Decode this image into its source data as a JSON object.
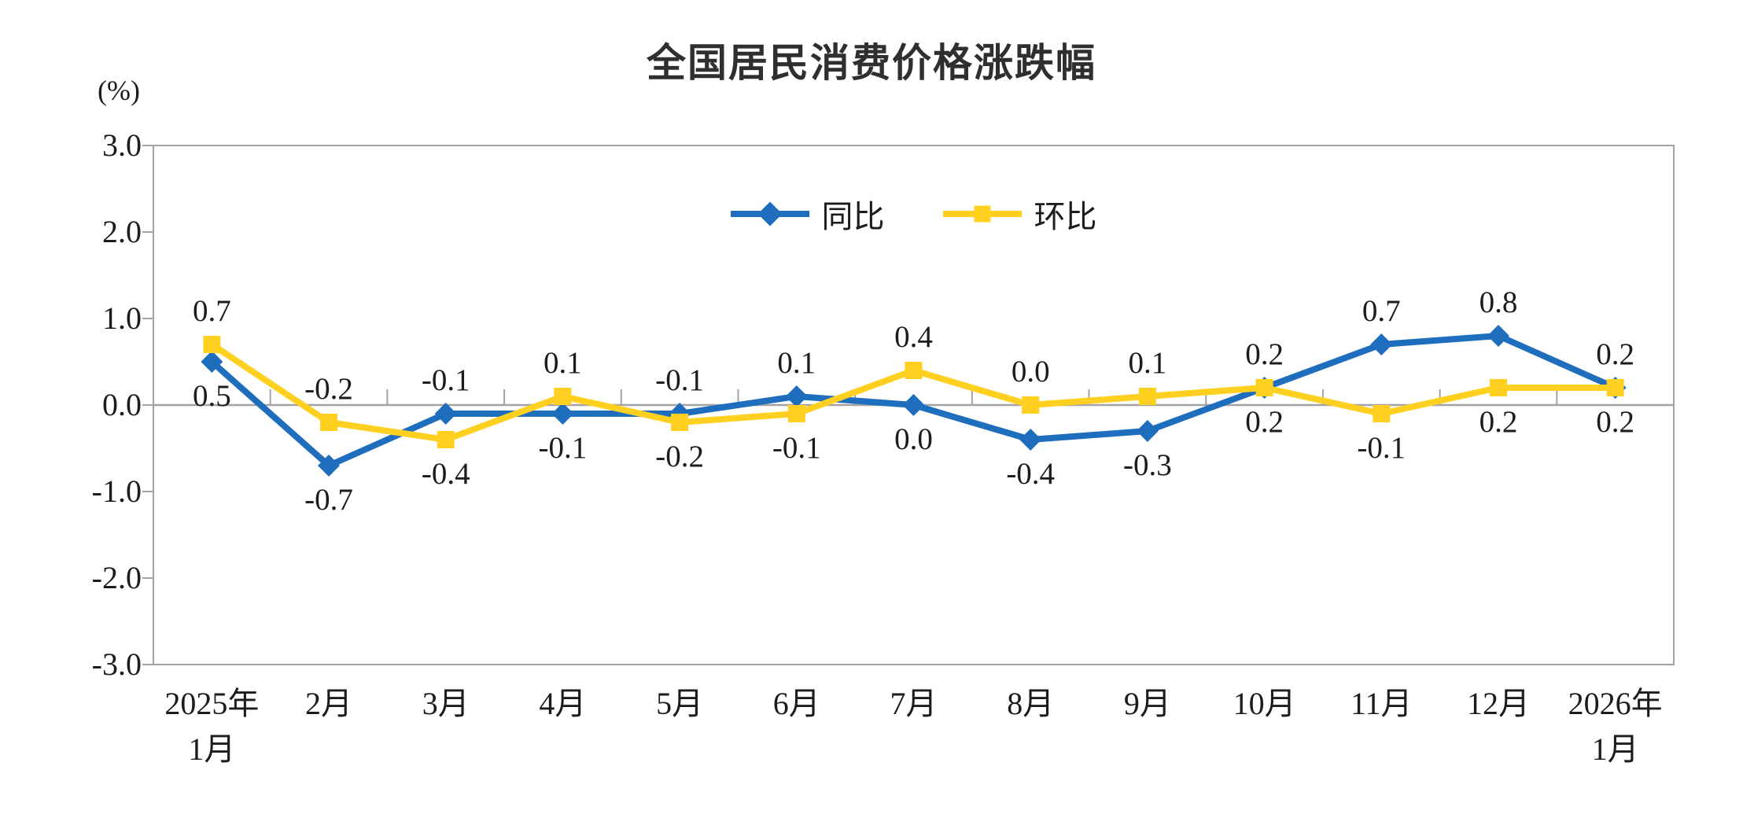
{
  "chart_data": {
    "type": "line",
    "title": "全国居民消费价格涨跌幅",
    "unit_label": "(%)",
    "categories": [
      [
        "2025年",
        "1月"
      ],
      [
        "2月"
      ],
      [
        "3月"
      ],
      [
        "4月"
      ],
      [
        "5月"
      ],
      [
        "6月"
      ],
      [
        "7月"
      ],
      [
        "8月"
      ],
      [
        "9月"
      ],
      [
        "10月"
      ],
      [
        "11月"
      ],
      [
        "12月"
      ],
      [
        "2026年",
        "1月"
      ]
    ],
    "series": [
      {
        "key": "yoy",
        "name": "同比",
        "color": "#1F6EBE",
        "marker": "diamond",
        "values": [
          0.5,
          -0.7,
          -0.1,
          -0.1,
          -0.1,
          0.1,
          0.0,
          -0.4,
          -0.3,
          0.2,
          0.7,
          0.8,
          0.2
        ],
        "label_positions": [
          "below",
          "below",
          "above",
          "below",
          "above",
          "above",
          "below",
          "below",
          "below",
          "below",
          "above",
          "above",
          "above"
        ]
      },
      {
        "key": "mom",
        "name": "环比",
        "color": "#FFD01F",
        "marker": "square",
        "values": [
          0.7,
          -0.2,
          -0.4,
          0.1,
          -0.2,
          -0.1,
          0.4,
          0.0,
          0.1,
          0.2,
          -0.1,
          0.2,
          0.2
        ],
        "label_positions": [
          "above",
          "above",
          "below",
          "above",
          "below",
          "below",
          "above",
          "above",
          "above",
          "above",
          "below",
          "below",
          "below"
        ]
      }
    ],
    "y_ticks": [
      "3.0",
      "2.0",
      "1.0",
      "0.0",
      "-1.0",
      "-2.0",
      "-3.0"
    ],
    "ylim": [
      -3.0,
      3.0
    ],
    "xlabel": "",
    "ylabel": "(%)",
    "grid": false,
    "legend_position": "top-center-inside",
    "axis_color": "#A3A3A3",
    "text_color": "#1c1c1c"
  }
}
